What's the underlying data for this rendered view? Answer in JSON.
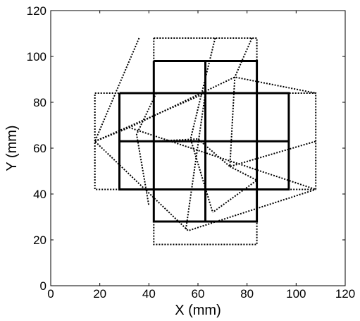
{
  "chart_data": {
    "type": "line",
    "xlabel": "X (mm)",
    "ylabel": "Y (mm)",
    "xlim": [
      0,
      120
    ],
    "ylim": [
      0,
      120
    ],
    "xticks": [
      0,
      20,
      40,
      60,
      80,
      100,
      120
    ],
    "yticks": [
      0,
      20,
      40,
      60,
      80,
      100,
      120
    ],
    "grid": false,
    "series": [
      {
        "style": "solid",
        "color": "#000000",
        "polylines": [
          [
            [
              42,
              98
            ],
            [
              84,
              98
            ],
            [
              84,
              28
            ],
            [
              42,
              28
            ],
            [
              42,
              98
            ]
          ],
          [
            [
              63,
              98
            ],
            [
              63,
              28
            ]
          ],
          [
            [
              28,
              84
            ],
            [
              97,
              84
            ],
            [
              97,
              42
            ],
            [
              28,
              42
            ],
            [
              28,
              84
            ]
          ],
          [
            [
              28,
              63
            ],
            [
              97,
              63
            ]
          ]
        ]
      },
      {
        "style": "dotted",
        "color": "#000000",
        "polylines": [
          [
            [
              42,
              108
            ],
            [
              84,
              108
            ],
            [
              84,
              18
            ],
            [
              42,
              18
            ],
            [
              42,
              108
            ]
          ],
          [
            [
              18,
              84
            ],
            [
              108,
              84
            ],
            [
              108,
              42
            ],
            [
              18,
              42
            ],
            [
              18,
              84
            ]
          ],
          [
            [
              18,
              63
            ],
            [
              32,
              69
            ],
            [
              75,
              91
            ],
            [
              108,
              84
            ]
          ],
          [
            [
              36,
              108
            ],
            [
              18,
              63
            ],
            [
              56,
              24
            ],
            [
              108,
              42
            ]
          ],
          [
            [
              18,
              63
            ],
            [
              32,
              69
            ],
            [
              108,
              42
            ]
          ],
          [
            [
              18,
              63
            ],
            [
              63,
              84
            ],
            [
              55,
              24
            ]
          ],
          [
            [
              67,
              108
            ],
            [
              57,
              64
            ],
            [
              66,
              32
            ]
          ],
          [
            [
              82,
              108
            ],
            [
              75,
              91
            ],
            [
              73,
              52
            ],
            [
              108,
              63
            ]
          ],
          [
            [
              43,
              84
            ],
            [
              35,
              66
            ],
            [
              40,
              35
            ]
          ],
          [
            [
              73,
              52
            ],
            [
              84,
              46
            ],
            [
              66,
              32
            ]
          ],
          [
            [
              42,
              63
            ],
            [
              60,
              64
            ],
            [
              73,
              52
            ]
          ]
        ]
      }
    ]
  }
}
